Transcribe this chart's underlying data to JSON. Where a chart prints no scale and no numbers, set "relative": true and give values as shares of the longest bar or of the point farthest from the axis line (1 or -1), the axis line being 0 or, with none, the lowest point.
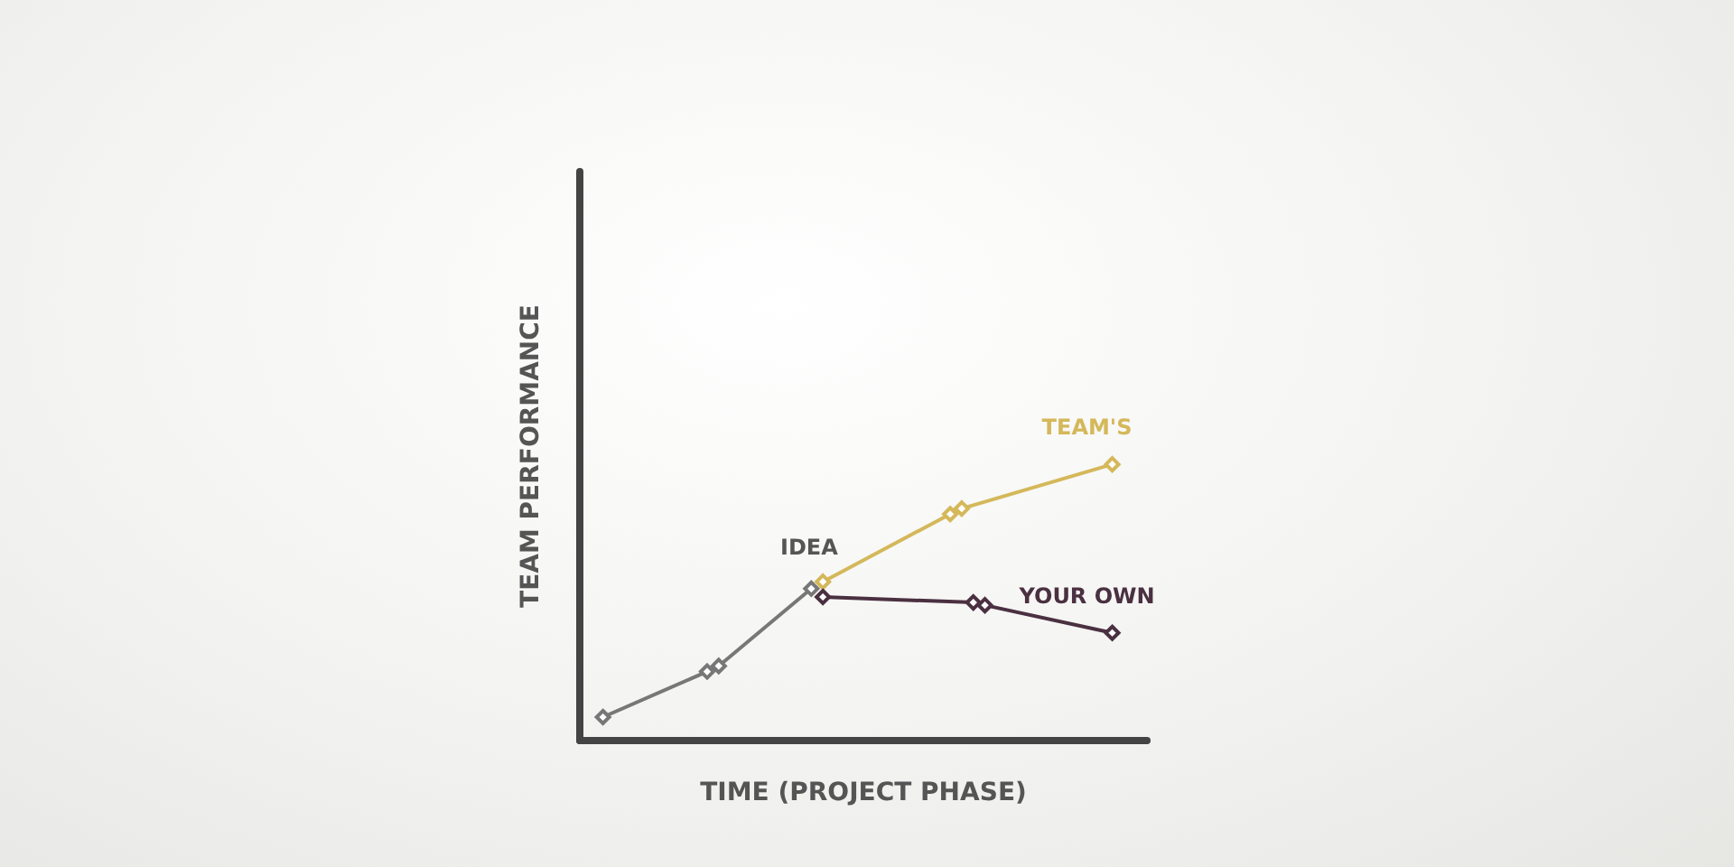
{
  "chart_data": {
    "type": "line",
    "relative": true,
    "xlabel": "TIME (PROJECT PHASE)",
    "ylabel": "TEAM PERFORMANCE",
    "categories": [
      null,
      null,
      null,
      null,
      null,
      null,
      null,
      null,
      null,
      null,
      null,
      null,
      null,
      null,
      null,
      null,
      null,
      null,
      null,
      null,
      null,
      null,
      null,
      null,
      null,
      null,
      null,
      null,
      null,
      null,
      null,
      null,
      null,
      null,
      null,
      null,
      null,
      null,
      null,
      null,
      null,
      null,
      null,
      null,
      null,
      null,
      null,
      null,
      null,
      null
    ],
    "grid": false,
    "legend": false,
    "marker": "diamond",
    "line_style": "solid",
    "annotations": [
      "IDEA"
    ],
    "series": [
      {
        "color": "#777777",
        "values": [
          null,
          null,
          0.085,
          null,
          null,
          null,
          null,
          null,
          null,
          null,
          null,
          0.25,
          0.27,
          null,
          null,
          null,
          null,
          null,
          null,
          null,
          0.55,
          null,
          null,
          null,
          null,
          null,
          null,
          null,
          null,
          null,
          null,
          null,
          null,
          null,
          null,
          null,
          null,
          null,
          null,
          null,
          null,
          null,
          null,
          null,
          null,
          null,
          null,
          null,
          null,
          null
        ]
      },
      {
        "name": "TEAM'S",
        "color": "#d4b85a",
        "values": [
          null,
          null,
          null,
          null,
          null,
          null,
          null,
          null,
          null,
          null,
          null,
          null,
          null,
          null,
          null,
          null,
          null,
          null,
          null,
          null,
          null,
          0.575,
          null,
          null,
          null,
          null,
          null,
          null,
          null,
          null,
          null,
          null,
          0.82,
          0.84,
          null,
          null,
          null,
          null,
          null,
          null,
          null,
          null,
          null,
          null,
          null,
          null,
          1,
          null,
          null,
          null
        ]
      },
      {
        "name": "YOUR OWN",
        "color": "#4a3040",
        "values": [
          null,
          null,
          null,
          null,
          null,
          null,
          null,
          null,
          null,
          null,
          null,
          null,
          null,
          null,
          null,
          null,
          null,
          null,
          null,
          null,
          null,
          0.52,
          null,
          null,
          null,
          null,
          null,
          null,
          null,
          null,
          null,
          null,
          null,
          null,
          0.5,
          0.49,
          null,
          null,
          null,
          null,
          null,
          null,
          null,
          null,
          null,
          null,
          0.39,
          null,
          null,
          null
        ]
      }
    ]
  }
}
